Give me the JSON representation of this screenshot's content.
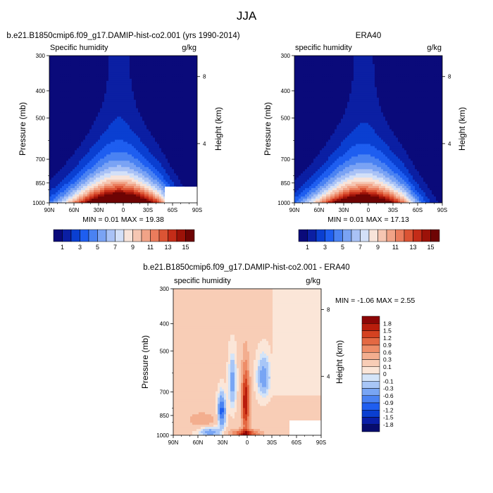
{
  "title": "JJA",
  "colors": {
    "abs_scale": [
      "#0a0a7a",
      "#0b1fa3",
      "#0a3fd1",
      "#1e5ef0",
      "#4a82f2",
      "#7aa3f4",
      "#a9c2f6",
      "#d3e0f8",
      "#f8e4da",
      "#f6c6b2",
      "#f1a387",
      "#ea7c5c",
      "#dc5434",
      "#c42c18",
      "#9c1208",
      "#6e0404"
    ],
    "diff_scale": [
      "#070c6e",
      "#0a1fa8",
      "#0a3fd1",
      "#1f5ef0",
      "#4a82f2",
      "#78a5f4",
      "#a8c6f7",
      "#d4e4f8",
      "#fbe6d8",
      "#f8cdb6",
      "#f3ae8f",
      "#ee8d68",
      "#e46943",
      "#d44221",
      "#b91d0c",
      "#8c0606"
    ]
  },
  "chart_data": [
    {
      "type": "heatmap",
      "title": "b.e21.B1850cmip6.f09_g17.DAMIP-hist-co2.001 (yrs 1990-2014)",
      "left_label": "Specific humidity",
      "right_label": "g/kg",
      "ylabel": "Pressure (mb)",
      "y2label": "Height (km)",
      "xticks": [
        "90N",
        "60N",
        "30N",
        "0",
        "30S",
        "60S",
        "90S"
      ],
      "yticks": [
        "300",
        "400",
        "500",
        "700",
        "850",
        "1000"
      ],
      "y2ticks": [
        "8",
        "4"
      ],
      "ylim": [
        1000,
        300
      ],
      "xlim": [
        90,
        -90
      ],
      "stats": "MIN =  0.01  MAX = 19.38",
      "min": 0.01,
      "max": 19.38,
      "colorbar_labels": [
        "1",
        "3",
        "5",
        "7",
        "9",
        "11",
        "13",
        "15"
      ],
      "levels": [
        1,
        2,
        3,
        4,
        5,
        6,
        7,
        8,
        9,
        10,
        11,
        12,
        13,
        14,
        15
      ]
    },
    {
      "type": "heatmap",
      "title": "ERA40",
      "left_label": "specific humidity",
      "right_label": "g/kg",
      "ylabel": "Pressure (mb)",
      "y2label": "Height (km)",
      "xticks": [
        "90N",
        "60N",
        "30N",
        "0",
        "30S",
        "60S",
        "90S"
      ],
      "yticks": [
        "300",
        "400",
        "500",
        "700",
        "850",
        "1000"
      ],
      "y2ticks": [
        "8",
        "4"
      ],
      "ylim": [
        1000,
        300
      ],
      "xlim": [
        90,
        -90
      ],
      "stats": "MIN =  0.01  MAX = 17.13",
      "min": 0.01,
      "max": 17.13,
      "colorbar_labels": [
        "1",
        "3",
        "5",
        "7",
        "9",
        "11",
        "13",
        "15"
      ],
      "levels": [
        1,
        2,
        3,
        4,
        5,
        6,
        7,
        8,
        9,
        10,
        11,
        12,
        13,
        14,
        15
      ]
    },
    {
      "type": "heatmap",
      "title": "b.e21.B1850cmip6.f09_g17.DAMIP-hist-co2.001 - ERA40",
      "left_label": "specific humidity",
      "right_label": "g/kg",
      "ylabel": "Pressure (mb)",
      "y2label": "Height (km)",
      "xticks": [
        "90N",
        "60N",
        "30N",
        "0",
        "30S",
        "60S",
        "90S"
      ],
      "yticks": [
        "300",
        "400",
        "500",
        "700",
        "850",
        "1000"
      ],
      "y2ticks": [
        "8",
        "4"
      ],
      "ylim": [
        1000,
        300
      ],
      "xlim": [
        90,
        -90
      ],
      "stats": "MIN = -1.06  MAX =   2.55",
      "min": -1.06,
      "max": 2.55,
      "colorbar_labels": [
        "1.8",
        "1.5",
        "1.2",
        "0.9",
        "0.6",
        "0.3",
        "0.1",
        "0",
        "-0.1",
        "-0.3",
        "-0.6",
        "-0.9",
        "-1.2",
        "-1.5",
        "-1.8"
      ]
    }
  ]
}
